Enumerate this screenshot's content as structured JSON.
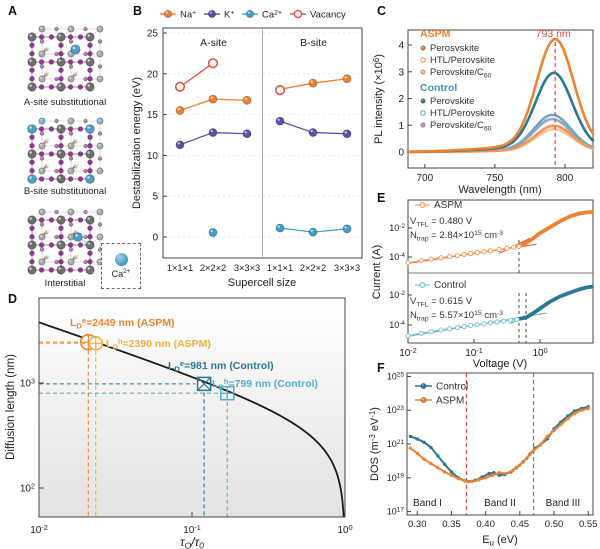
{
  "panels": {
    "A": {
      "label": "A",
      "structures": [
        {
          "caption": "A-site substitutional",
          "variant": "a-site"
        },
        {
          "caption": "B-site substitutional",
          "variant": "b-site"
        },
        {
          "caption": "Interstitial",
          "variant": "interstitial"
        }
      ],
      "ca_label": "Ca<sup>2+</sup>"
    },
    "B": {
      "label": "B"
    },
    "C": {
      "label": "C"
    },
    "D": {
      "label": "D"
    },
    "E": {
      "label": "E"
    },
    "F": {
      "label": "F"
    }
  },
  "colors": {
    "orange": "#F08130",
    "light_orange": "#F8C18F",
    "mid_orange": "#F2955C",
    "yellow_orange": "#F3AE3D",
    "red": "#E8483F",
    "purple": "#5B51A5",
    "blue": "#3F9FCC",
    "dark_teal": "#2A7893",
    "mid_teal": "#6FA8C0",
    "light_teal": "#56AECB",
    "gray_blue": "#97A9BD"
  },
  "chart_data": [
    {
      "panel": "B",
      "type": "line",
      "title": "",
      "xlabel": "Supercell size",
      "ylabel": "Destabilization energy (eV)",
      "categories": [
        "1×1×1",
        "2×2×2",
        "3×3×3",
        "1×1×1",
        "2×2×2",
        "3×3×3"
      ],
      "section_labels": [
        "A-site",
        "B-site"
      ],
      "ylim": [
        -2.8,
        25.6
      ],
      "yticks": [
        0,
        5,
        10,
        15,
        20,
        25
      ],
      "legend": [
        {
          "label": "Na<sup>+</sup>",
          "color": "#F08130",
          "open": false
        },
        {
          "label": "K<sup>+</sup>",
          "color": "#5B51A5",
          "open": false
        },
        {
          "label": "Ca<sup>2+</sup>",
          "color": "#3F9FCC",
          "open": false
        },
        {
          "label": "Vacancy",
          "color": "#E8483F",
          "open": true
        }
      ],
      "series": [
        {
          "name": "Na+ A-site",
          "color": "#F08130",
          "open": false,
          "points": [
            [
              0,
              15.5
            ],
            [
              1,
              16.9
            ],
            [
              2,
              16.75
            ]
          ]
        },
        {
          "name": "K+ A-site",
          "color": "#5B51A5",
          "open": false,
          "points": [
            [
              0,
              11.3
            ],
            [
              1,
              12.8
            ],
            [
              2,
              12.65
            ]
          ]
        },
        {
          "name": "Ca2+ A-site",
          "color": "#3F9FCC",
          "open": false,
          "points": [
            [
              1,
              0.55
            ]
          ]
        },
        {
          "name": "Vacancy A-site",
          "color": "#E8483F",
          "open": true,
          "points": [
            [
              0,
              18.4
            ],
            [
              1,
              21.3
            ]
          ]
        },
        {
          "name": "Na+ B-site",
          "color": "#F08130",
          "open": false,
          "points": [
            [
              3,
              18.1
            ],
            [
              4,
              18.85
            ],
            [
              5,
              19.4
            ]
          ]
        },
        {
          "name": "K+ B-site",
          "color": "#5B51A5",
          "open": false,
          "points": [
            [
              3,
              14.2
            ],
            [
              4,
              12.8
            ],
            [
              5,
              12.65
            ]
          ]
        },
        {
          "name": "Ca2+ B-site",
          "color": "#3F9FCC",
          "open": false,
          "points": [
            [
              3,
              1.1
            ],
            [
              4,
              0.6
            ],
            [
              5,
              1.0
            ]
          ]
        },
        {
          "name": "Vacancy B-site",
          "color": "#E8483F",
          "open": true,
          "points": [
            [
              3,
              18.0
            ]
          ]
        }
      ]
    },
    {
      "panel": "C",
      "type": "line",
      "title": "",
      "xlabel": "Wavelength (nm)",
      "ylabel": "PL intensity (×10<sup>6</sup>)",
      "xlim": [
        688,
        820
      ],
      "ylim": [
        -0.55,
        4.55
      ],
      "xticks": [
        700,
        750,
        800
      ],
      "yticks": [
        0,
        1,
        2,
        3,
        4
      ],
      "peak_annotation": {
        "text": "793 nm",
        "wavelength": 793,
        "color": "#E8483F"
      },
      "legend_groups": [
        {
          "header": "ASPM",
          "color": "#F08130",
          "items": [
            {
              "label": "Perosvskite",
              "marker": "filled",
              "color": "#F08130"
            },
            {
              "label": "HTL/Perovskite",
              "marker": "open",
              "color": "#F2955C"
            },
            {
              "label": "Perovskite/C<sub>60</sub>",
              "marker": "filled",
              "color": "#F8C18F"
            }
          ]
        },
        {
          "header": "Control",
          "color": "#4A93AE",
          "items": [
            {
              "label": "Perovskite",
              "marker": "filled",
              "color": "#2A7893"
            },
            {
              "label": "HTL/Perovskite",
              "marker": "open",
              "color": "#6FA8C0"
            },
            {
              "label": "Perovskite/C<sub>60</sub>",
              "marker": "filled",
              "color": "#97A9BD"
            }
          ]
        }
      ],
      "series": [
        {
          "name": "ASPM Perovskite",
          "color": "#F08130",
          "peak": 3.95,
          "center": 793,
          "sigma": 13
        },
        {
          "name": "Control Perovskite",
          "color": "#2A7893",
          "peak": 2.77,
          "center": 792,
          "sigma": 13
        },
        {
          "name": "Control HTL/Perovskite",
          "color": "#6FA8C0",
          "peak": 1.3,
          "center": 791,
          "sigma": 13
        },
        {
          "name": "Control Perovskite/C60",
          "color": "#97A9BD",
          "peak": 1.15,
          "center": 791,
          "sigma": 13
        },
        {
          "name": "ASPM HTL/Perovskite",
          "color": "#F2955C",
          "peak": 0.92,
          "center": 792,
          "sigma": 13
        },
        {
          "name": "ASPM Perovskite/C60",
          "color": "#F8C18F",
          "peak": 0.8,
          "center": 792,
          "sigma": 13
        }
      ],
      "draw_order": [
        3,
        2,
        5,
        4,
        1,
        0
      ]
    },
    {
      "panel": "D",
      "type": "line",
      "title": "",
      "xlabel": "τ<sub>Q</sub>/τ<sub>0</sub>",
      "ylabel": "Diffusion length  (nm)",
      "xticks_exp": [
        -2,
        -1,
        0
      ],
      "yticks_exp": [
        2,
        3
      ],
      "curve": {
        "formula": "L = 380·sqrt((1-t)/t)",
        "coef": 380
      },
      "markers": [
        {
          "label": "L<sub>D</sub><sup>e</sup>=2449 nm (ASPM)",
          "tau": 0.021,
          "length_nm": 2449,
          "color": "#F08130",
          "shape": "circle-plus"
        },
        {
          "label": "L<sub>D</sub><sup>h</sup>=2390 nm (ASPM)",
          "tau": 0.0235,
          "length_nm": 2390,
          "color": "#F3AE3D",
          "shape": "circle-plus"
        },
        {
          "label": "L<sub>D</sub><sup>e</sup>=981 nm (Control)",
          "tau": 0.12,
          "length_nm": 981,
          "color": "#2A7893",
          "shape": "square-x"
        },
        {
          "label": "L<sub>D</sub><sup>h</sup>=799 nm (Control)",
          "tau": 0.17,
          "length_nm": 799,
          "color": "#56AECB",
          "shape": "square-plus"
        }
      ]
    },
    {
      "panel": "E",
      "type": "line",
      "title": "",
      "xlabel": "Voltage (V)",
      "ylabel": "Current (A)",
      "xticks_exp": [
        -2,
        -1,
        0
      ],
      "subpanels": [
        {
          "name": "ASPM",
          "legend": "ASPM",
          "color": "#F08130",
          "marker_color": "#F59A5B",
          "fit_color": "#E8483F",
          "vtfl_text": "V<sub>TFL</sub> = 0.480 V",
          "ntrap_text": "N<sub>trap</sub> = 2.84×10<sup>15</sup> cm<sup>-3</sup>",
          "vtfl": 0.48,
          "yticks_exp": [
            -2,
            -4
          ],
          "marker_until_logx": -0.32,
          "points_logxy": [
            [
              -2,
              -4.4
            ],
            [
              -1.8,
              -4.25
            ],
            [
              -1.65,
              -4.15
            ],
            [
              -1.5,
              -4.05
            ],
            [
              -1.37,
              -3.97
            ],
            [
              -1.25,
              -3.9
            ],
            [
              -1.15,
              -3.82
            ],
            [
              -1.05,
              -3.76
            ],
            [
              -0.95,
              -3.7
            ],
            [
              -0.85,
              -3.63
            ],
            [
              -0.75,
              -3.57
            ],
            [
              -0.62,
              -3.48
            ],
            [
              -0.5,
              -3.4
            ],
            [
              -0.4,
              -3.33
            ],
            [
              -0.32,
              -3.27
            ],
            [
              -0.2,
              -3.0
            ],
            [
              -0.1,
              -2.7
            ],
            [
              0,
              -2.35
            ],
            [
              0.15,
              -1.95
            ],
            [
              0.3,
              -1.55
            ],
            [
              0.45,
              -1.2
            ],
            [
              0.6,
              -1.0
            ],
            [
              0.7,
              -0.92
            ],
            [
              0.78,
              -0.9
            ]
          ],
          "fit_lines": [
            {
              "from": [
                -1.98,
                -4.42
              ],
              "to": [
                -0.05,
                -3.12
              ]
            },
            {
              "from": [
                -0.62,
                -3.75
              ],
              "to": [
                -0.15,
                -2.7
              ]
            }
          ]
        },
        {
          "name": "Control",
          "legend": "Control",
          "color": "#2A7893",
          "marker_color": "#7BC0CE",
          "fit_color": "#49B0C4",
          "vtfl_text": "V<sub>TFL</sub> = 0.615 V",
          "ntrap_text": "N<sub>trap</sub> = 5.57×10<sup>15</sup> cm<sup>-3</sup>",
          "vtfl": 0.615,
          "yticks_exp": [
            -2,
            -4
          ],
          "marker_until_logx": -0.35,
          "points_logxy": [
            [
              -2,
              -4.72
            ],
            [
              -1.8,
              -4.55
            ],
            [
              -1.65,
              -4.44
            ],
            [
              -1.5,
              -4.33
            ],
            [
              -1.37,
              -4.25
            ],
            [
              -1.25,
              -4.17
            ],
            [
              -1.15,
              -4.1
            ],
            [
              -1.05,
              -4.04
            ],
            [
              -0.95,
              -3.98
            ],
            [
              -0.85,
              -3.92
            ],
            [
              -0.75,
              -3.86
            ],
            [
              -0.65,
              -3.8
            ],
            [
              -0.55,
              -3.74
            ],
            [
              -0.45,
              -3.68
            ],
            [
              -0.35,
              -3.62
            ],
            [
              -0.21,
              -3.5
            ],
            [
              -0.1,
              -3.2
            ],
            [
              0,
              -2.9
            ],
            [
              0.15,
              -2.45
            ],
            [
              0.3,
              -2.1
            ],
            [
              0.45,
              -1.85
            ],
            [
              0.6,
              -1.62
            ],
            [
              0.7,
              -1.5
            ],
            [
              0.78,
              -1.45
            ]
          ],
          "fit_lines": [
            {
              "from": [
                -1.98,
                -4.74
              ],
              "to": [
                0.1,
                -3.2
              ]
            },
            {
              "from": [
                -0.45,
                -3.9
              ],
              "to": [
                0.05,
                -2.85
              ]
            }
          ]
        }
      ],
      "dashed_lines": [
        {
          "v": 0.48,
          "panels": [
            0,
            1
          ]
        },
        {
          "v": 0.615,
          "panels": [
            1
          ]
        }
      ]
    },
    {
      "panel": "F",
      "type": "scatter",
      "title": "",
      "xlabel": "E<sub>u</sub> (eV)",
      "ylabel": "DOS (m<sup>-3</sup> eV<sup>-1</sup>)",
      "xlim": [
        0.285,
        0.557
      ],
      "xticks": [
        0.3,
        0.35,
        0.4,
        0.45,
        0.5,
        0.55
      ],
      "xtick_labels": [
        "0.30",
        "0.35",
        "0.40",
        "0.45",
        "0.50",
        "0.55"
      ],
      "yticks_exp": [
        17,
        19,
        21,
        23,
        25
      ],
      "band_lines": [
        0.372,
        0.47
      ],
      "band_labels": [
        {
          "text": "Band I",
          "x": 0.315
        },
        {
          "text": "Band II",
          "x": 0.421
        },
        {
          "text": "Band III",
          "x": 0.513
        }
      ],
      "legend": [
        {
          "label": "Control",
          "color": "#2A7893"
        },
        {
          "label": "ASPM",
          "color": "#F08130"
        }
      ],
      "series": [
        {
          "name": "Control",
          "color": "#2A7893",
          "points_logy": [
            [
              0.29,
              21.45
            ],
            [
              0.3,
              21.3
            ],
            [
              0.31,
              21.1
            ],
            [
              0.32,
              20.8
            ],
            [
              0.33,
              20.3
            ],
            [
              0.34,
              19.8
            ],
            [
              0.35,
              19.35
            ],
            [
              0.36,
              19.0
            ],
            [
              0.37,
              18.82
            ],
            [
              0.375,
              18.78
            ],
            [
              0.385,
              18.85
            ],
            [
              0.395,
              19.05
            ],
            [
              0.405,
              19.25
            ],
            [
              0.412,
              19.3
            ],
            [
              0.42,
              19.15
            ],
            [
              0.428,
              19.2
            ],
            [
              0.437,
              19.35
            ],
            [
              0.445,
              19.6
            ],
            [
              0.455,
              19.95
            ],
            [
              0.465,
              20.4
            ],
            [
              0.472,
              20.75
            ],
            [
              0.48,
              20.95
            ],
            [
              0.49,
              21.3
            ],
            [
              0.5,
              21.9
            ],
            [
              0.51,
              22.3
            ],
            [
              0.52,
              22.65
            ],
            [
              0.53,
              22.95
            ],
            [
              0.54,
              23.1
            ],
            [
              0.55,
              23.2
            ]
          ]
        },
        {
          "name": "ASPM",
          "color": "#F08130",
          "points_logy": [
            [
              0.29,
              20.75
            ],
            [
              0.3,
              20.45
            ],
            [
              0.31,
              20.1
            ],
            [
              0.32,
              19.85
            ],
            [
              0.33,
              19.6
            ],
            [
              0.34,
              19.35
            ],
            [
              0.35,
              19.15
            ],
            [
              0.36,
              18.95
            ],
            [
              0.37,
              18.8
            ],
            [
              0.38,
              18.78
            ],
            [
              0.39,
              18.88
            ],
            [
              0.4,
              19.0
            ],
            [
              0.41,
              19.15
            ],
            [
              0.42,
              19.3
            ],
            [
              0.43,
              19.25
            ],
            [
              0.44,
              19.45
            ],
            [
              0.45,
              19.75
            ],
            [
              0.46,
              20.15
            ],
            [
              0.47,
              20.6
            ],
            [
              0.48,
              20.95
            ],
            [
              0.49,
              21.45
            ],
            [
              0.5,
              21.8
            ],
            [
              0.51,
              22.15
            ],
            [
              0.52,
              22.5
            ],
            [
              0.53,
              22.8
            ],
            [
              0.54,
              23.0
            ],
            [
              0.55,
              23.1
            ]
          ]
        }
      ]
    }
  ]
}
